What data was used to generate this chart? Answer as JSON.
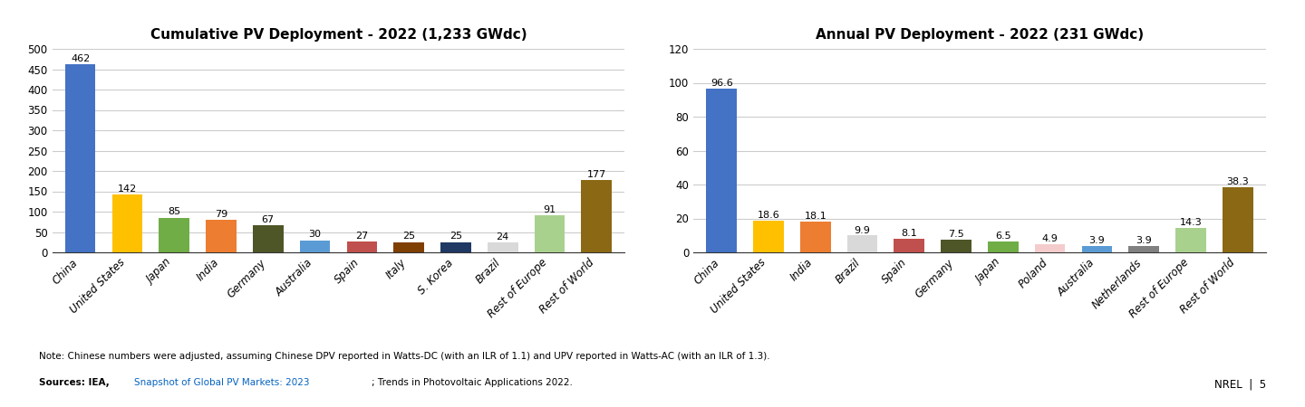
{
  "left_title": "Cumulative PV Deployment - 2022 (1,233 GWdc)",
  "right_title": "Annual PV Deployment - 2022 (231 GWdc)",
  "left_categories": [
    "China",
    "United States",
    "Japan",
    "India",
    "Germany",
    "Australia",
    "Spain",
    "Italy",
    "S. Korea",
    "Brazil",
    "Rest of Europe",
    "Rest of World"
  ],
  "left_values": [
    462,
    142,
    85,
    79,
    67,
    30,
    27,
    25,
    25,
    24,
    91,
    177
  ],
  "left_colors": [
    "#4472C4",
    "#FFC000",
    "#70AD47",
    "#ED7D31",
    "#4E5628",
    "#5B9BD5",
    "#C0504D",
    "#7F3F00",
    "#1F3864",
    "#D9D9D9",
    "#A9D18E",
    "#8B6914"
  ],
  "left_ylim": [
    0,
    500
  ],
  "left_yticks": [
    0,
    50,
    100,
    150,
    200,
    250,
    300,
    350,
    400,
    450,
    500
  ],
  "right_categories": [
    "China",
    "United States",
    "India",
    "Brazil",
    "Spain",
    "Germany",
    "Japan",
    "Poland",
    "Australia",
    "Netherlands",
    "Rest of Europe",
    "Rest of World"
  ],
  "right_values": [
    96.6,
    18.6,
    18.1,
    9.9,
    8.1,
    7.5,
    6.5,
    4.9,
    3.9,
    3.9,
    14.3,
    38.3
  ],
  "right_colors": [
    "#4472C4",
    "#FFC000",
    "#ED7D31",
    "#D9D9D9",
    "#C0504D",
    "#4E5628",
    "#70AD47",
    "#F4CCCC",
    "#5B9BD5",
    "#808080",
    "#A9D18E",
    "#8B6914"
  ],
  "right_ylim": [
    0,
    120
  ],
  "right_yticks": [
    0,
    20,
    40,
    60,
    80,
    100,
    120
  ],
  "note_text": "Note: Chinese numbers were adjusted, assuming Chinese DPV reported in Watts-DC (with an ILR of 1.1) and UPV reported in Watts-AC (with an ILR of 1.3).",
  "sources_text_plain": "Sources: IEA, ",
  "sources_link_text": "Snapshot of Global PV Markets: 2023",
  "sources_text_after": "; Trends in Photovoltaic Applications 2022.",
  "nrel_text": "NREL  |  5",
  "background_color": "#FFFFFF"
}
